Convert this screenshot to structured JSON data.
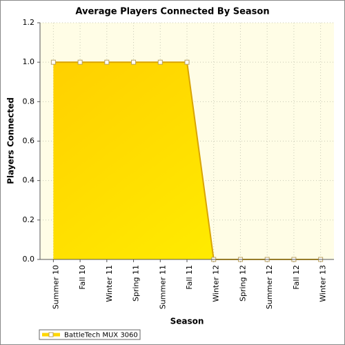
{
  "chart_data": {
    "type": "area",
    "title": "Average Players Connected By Season",
    "x_label": "Season",
    "y_label": "Players Connected",
    "categories": [
      "Summer 10",
      "Fall 10",
      "Winter 11",
      "Spring 11",
      "Summer 11",
      "Fall 11",
      "Winter 12",
      "Spring 12",
      "Summer 12",
      "Fall 12",
      "Winter 13"
    ],
    "series": [
      {
        "name": "BattleTech MUX 3060",
        "color": "#ffd700",
        "values": [
          1,
          1,
          1,
          1,
          1,
          1,
          0,
          0,
          0,
          0,
          0
        ]
      }
    ],
    "ylim": [
      0,
      1.2
    ],
    "yticks": [
      {
        "value": 0,
        "label": "0.0"
      },
      {
        "value": 0.2,
        "label": "0.2"
      },
      {
        "value": 0.4,
        "label": "0.4"
      },
      {
        "value": 0.6,
        "label": "0.6"
      },
      {
        "value": 0.8,
        "label": "0.8"
      },
      {
        "value": 1,
        "label": "1.0"
      },
      {
        "value": 1.2,
        "label": "1.2"
      }
    ],
    "grid": true,
    "legend": "bottom-left"
  }
}
